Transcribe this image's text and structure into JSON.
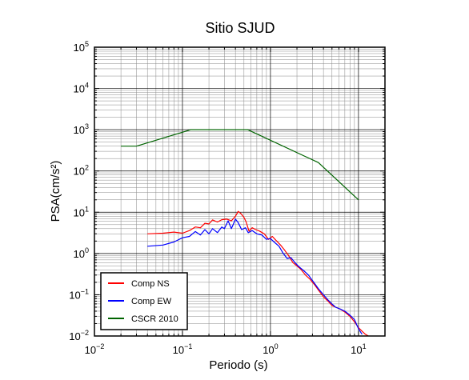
{
  "chart_data": {
    "type": "line",
    "title": "Sitio SJUD",
    "xlabel": "Periodo (s)",
    "ylabel": "PSA(cm/s²)",
    "xscale": "log",
    "yscale": "log",
    "xlim": [
      0.01,
      20
    ],
    "ylim": [
      0.01,
      100000
    ],
    "grid": true,
    "legend_position": "bottom-left",
    "x_ticks": [
      {
        "value": 0.01,
        "base": "10",
        "exp": "−2"
      },
      {
        "value": 0.1,
        "base": "10",
        "exp": "−1"
      },
      {
        "value": 1,
        "base": "10",
        "exp": "0"
      },
      {
        "value": 10,
        "base": "10",
        "exp": "1"
      }
    ],
    "y_ticks": [
      {
        "value": 0.01,
        "base": "10",
        "exp": "−2"
      },
      {
        "value": 0.1,
        "base": "10",
        "exp": "−1"
      },
      {
        "value": 1,
        "base": "10",
        "exp": "0"
      },
      {
        "value": 10,
        "base": "10",
        "exp": "1"
      },
      {
        "value": 100,
        "base": "10",
        "exp": "2"
      },
      {
        "value": 1000,
        "base": "10",
        "exp": "3"
      },
      {
        "value": 10000,
        "base": "10",
        "exp": "4"
      },
      {
        "value": 100000,
        "base": "10",
        "exp": "5"
      }
    ],
    "series": [
      {
        "name": "Comp NS",
        "color": "#ff0000",
        "points": [
          [
            0.04,
            3.0
          ],
          [
            0.06,
            3.1
          ],
          [
            0.08,
            3.3
          ],
          [
            0.1,
            3.1
          ],
          [
            0.12,
            3.6
          ],
          [
            0.14,
            4.4
          ],
          [
            0.16,
            4.2
          ],
          [
            0.18,
            5.4
          ],
          [
            0.2,
            5.2
          ],
          [
            0.22,
            6.5
          ],
          [
            0.25,
            5.8
          ],
          [
            0.28,
            6.6
          ],
          [
            0.32,
            6.8
          ],
          [
            0.36,
            6.2
          ],
          [
            0.4,
            8.0
          ],
          [
            0.43,
            10.5
          ],
          [
            0.46,
            9.4
          ],
          [
            0.5,
            7.5
          ],
          [
            0.53,
            5.8
          ],
          [
            0.57,
            3.5
          ],
          [
            0.62,
            4.2
          ],
          [
            0.68,
            3.8
          ],
          [
            0.75,
            3.5
          ],
          [
            0.85,
            3.0
          ],
          [
            0.95,
            2.2
          ],
          [
            1.05,
            2.6
          ],
          [
            1.15,
            2.1
          ],
          [
            1.3,
            1.6
          ],
          [
            1.45,
            1.2
          ],
          [
            1.6,
            0.9
          ],
          [
            1.8,
            0.6
          ],
          [
            2.0,
            0.5
          ],
          [
            2.2,
            0.42
          ],
          [
            2.5,
            0.3
          ],
          [
            2.8,
            0.24
          ],
          [
            3.2,
            0.17
          ],
          [
            3.6,
            0.12
          ],
          [
            4.0,
            0.09
          ],
          [
            4.5,
            0.07
          ],
          [
            5.0,
            0.055
          ],
          [
            5.5,
            0.05
          ],
          [
            6.2,
            0.045
          ],
          [
            7.0,
            0.038
          ],
          [
            8.0,
            0.03
          ],
          [
            9.0,
            0.022
          ],
          [
            10,
            0.016
          ],
          [
            11,
            0.013
          ],
          [
            12,
            0.011
          ],
          [
            13.5,
            0.0095
          ]
        ]
      },
      {
        "name": "Comp EW",
        "color": "#0000ff",
        "points": [
          [
            0.04,
            1.5
          ],
          [
            0.06,
            1.6
          ],
          [
            0.08,
            1.9
          ],
          [
            0.1,
            2.4
          ],
          [
            0.12,
            2.6
          ],
          [
            0.14,
            3.4
          ],
          [
            0.16,
            2.8
          ],
          [
            0.18,
            3.8
          ],
          [
            0.2,
            3.0
          ],
          [
            0.22,
            4.0
          ],
          [
            0.25,
            3.2
          ],
          [
            0.28,
            4.4
          ],
          [
            0.3,
            4.0
          ],
          [
            0.33,
            6.2
          ],
          [
            0.36,
            4.0
          ],
          [
            0.38,
            5.2
          ],
          [
            0.4,
            6.8
          ],
          [
            0.43,
            5.6
          ],
          [
            0.47,
            3.8
          ],
          [
            0.52,
            4.2
          ],
          [
            0.56,
            3.2
          ],
          [
            0.62,
            3.6
          ],
          [
            0.7,
            3.0
          ],
          [
            0.8,
            2.8
          ],
          [
            0.9,
            2.2
          ],
          [
            1.0,
            2.3
          ],
          [
            1.1,
            1.9
          ],
          [
            1.25,
            1.5
          ],
          [
            1.4,
            1.0
          ],
          [
            1.55,
            0.75
          ],
          [
            1.7,
            0.8
          ],
          [
            1.9,
            0.6
          ],
          [
            2.1,
            0.48
          ],
          [
            2.4,
            0.38
          ],
          [
            2.7,
            0.3
          ],
          [
            3.1,
            0.2
          ],
          [
            3.5,
            0.14
          ],
          [
            4.0,
            0.1
          ],
          [
            4.5,
            0.075
          ],
          [
            5.0,
            0.06
          ],
          [
            5.5,
            0.05
          ],
          [
            6.2,
            0.045
          ],
          [
            7.0,
            0.04
          ],
          [
            8.0,
            0.032
          ],
          [
            9.0,
            0.025
          ],
          [
            10,
            0.015
          ],
          [
            11,
            0.011
          ]
        ]
      },
      {
        "name": "CSCR 2010",
        "color": "#006400",
        "points": [
          [
            0.02,
            400
          ],
          [
            0.03,
            400
          ],
          [
            0.125,
            1000
          ],
          [
            0.55,
            1000
          ],
          [
            3.5,
            160
          ],
          [
            10,
            20
          ]
        ]
      }
    ]
  }
}
